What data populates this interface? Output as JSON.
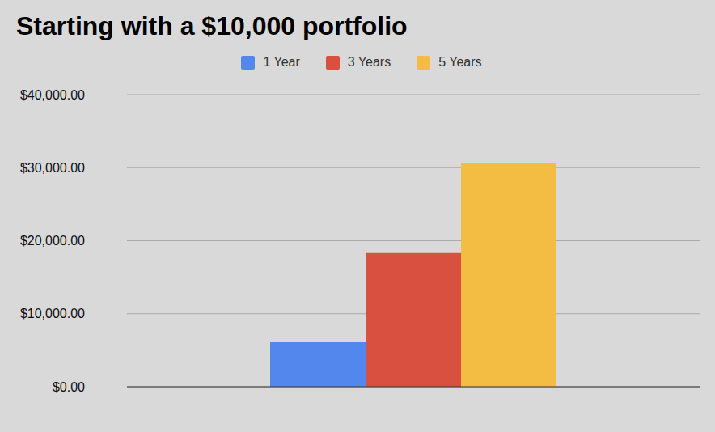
{
  "chart_data": {
    "type": "bar",
    "title": "Starting with a $10,000 portfolio",
    "categories": [
      null
    ],
    "series": [
      {
        "name": "1 Year",
        "color": "#5387ee",
        "values": [
          6100
        ]
      },
      {
        "name": "3 Years",
        "color": "#d95040",
        "values": [
          18300
        ]
      },
      {
        "name": "5 Years",
        "color": "#f2bd42",
        "values": [
          30700
        ]
      }
    ],
    "ylim": [
      0,
      40000
    ],
    "yticks": [
      {
        "value": 0,
        "label": "$0.00"
      },
      {
        "value": 10000,
        "label": "$10,000.00"
      },
      {
        "value": 20000,
        "label": "$20,000.00"
      },
      {
        "value": 30000,
        "label": "$30,000.00"
      },
      {
        "value": 40000,
        "label": "$40,000.00"
      }
    ],
    "grid": true,
    "legend": "top",
    "tick_labels": "y"
  }
}
